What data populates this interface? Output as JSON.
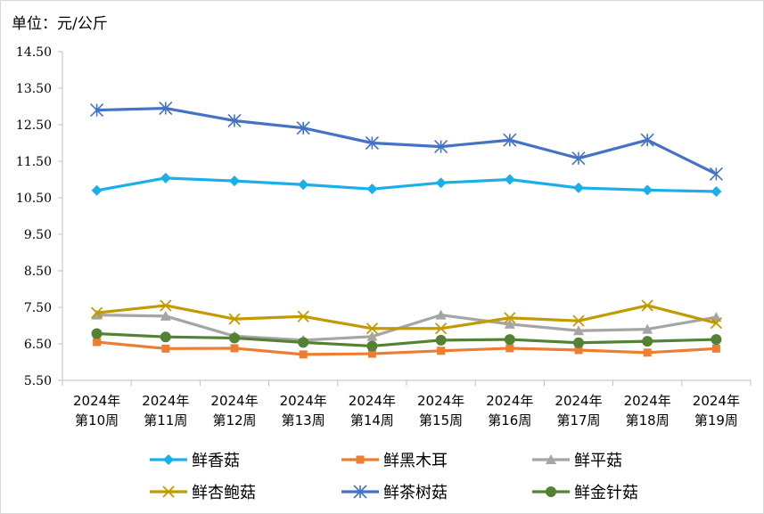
{
  "chart_data": {
    "type": "line",
    "unit_label": "单位：元/公斤",
    "categories": [
      [
        "2024年",
        "第10周"
      ],
      [
        "2024年",
        "第11周"
      ],
      [
        "2024年",
        "第12周"
      ],
      [
        "2024年",
        "第13周"
      ],
      [
        "2024年",
        "第14周"
      ],
      [
        "2024年",
        "第15周"
      ],
      [
        "2024年",
        "第16周"
      ],
      [
        "2024年",
        "第17周"
      ],
      [
        "2024年",
        "第18周"
      ],
      [
        "2024年",
        "第19周"
      ]
    ],
    "y_ticks": [
      "14.50",
      "13.50",
      "12.50",
      "11.50",
      "10.50",
      "9.50",
      "8.50",
      "7.50",
      "6.50",
      "5.50"
    ],
    "ylim": [
      5.5,
      14.5
    ],
    "grid": false,
    "legend_position": "bottom",
    "series": [
      {
        "name": "鲜香菇",
        "color": "#1AAFE8",
        "marker": "diamond",
        "values": [
          10.7,
          11.04,
          10.96,
          10.86,
          10.74,
          10.91,
          11.0,
          10.77,
          10.71,
          10.67
        ]
      },
      {
        "name": "鲜黑木耳",
        "color": "#ED7D31",
        "marker": "square",
        "values": [
          6.55,
          6.37,
          6.38,
          6.21,
          6.23,
          6.31,
          6.38,
          6.33,
          6.26,
          6.37
        ]
      },
      {
        "name": "鲜平菇",
        "color": "#A5A5A5",
        "marker": "triangle",
        "values": [
          7.29,
          7.26,
          6.71,
          6.6,
          6.7,
          7.29,
          7.04,
          6.86,
          6.9,
          7.23
        ]
      },
      {
        "name": "鲜杏鲍菇",
        "color": "#C39A00",
        "marker": "x",
        "values": [
          7.35,
          7.55,
          7.18,
          7.25,
          6.92,
          6.92,
          7.21,
          7.13,
          7.55,
          7.07
        ]
      },
      {
        "name": "鲜茶树菇",
        "color": "#4472C4",
        "marker": "asterisk",
        "values": [
          12.9,
          12.95,
          12.61,
          12.41,
          12.0,
          11.9,
          12.08,
          11.58,
          12.08,
          11.15
        ]
      },
      {
        "name": "鲜金针菇",
        "color": "#548235",
        "marker": "circle",
        "values": [
          6.78,
          6.69,
          6.66,
          6.54,
          6.44,
          6.6,
          6.62,
          6.53,
          6.57,
          6.62
        ]
      }
    ]
  }
}
